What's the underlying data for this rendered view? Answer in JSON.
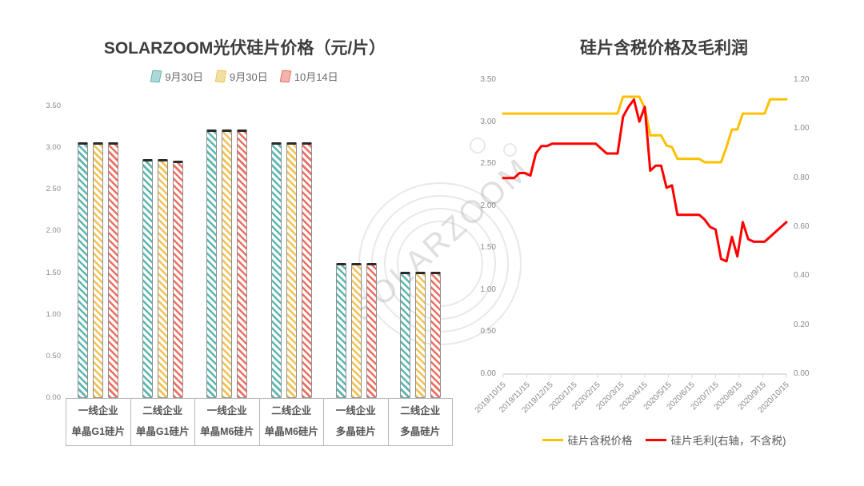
{
  "watermark": {
    "text": "SOLARZOOM"
  },
  "chart_data": [
    {
      "type": "bar",
      "title": "SOLARZOOM光伏硅片价格（元/片）",
      "legend_position": "top",
      "grid": false,
      "ylim": [
        0,
        3.5
      ],
      "y_ticks": [
        "3.50",
        "3.00",
        "2.50",
        "2.00",
        "1.50",
        "1.00",
        "0.50",
        "0.00"
      ],
      "categories": [
        {
          "company": "一线企业",
          "product": "单晶G1硅片"
        },
        {
          "company": "二线企业",
          "product": "单晶G1硅片"
        },
        {
          "company": "一线企业",
          "product": "单晶M6硅片"
        },
        {
          "company": "二线企业",
          "product": "单晶M6硅片"
        },
        {
          "company": "一线企业",
          "product": "多晶硅片"
        },
        {
          "company": "二线企业",
          "product": "多晶硅片"
        }
      ],
      "series": [
        {
          "name": "9月30日",
          "color": "#5cb6b0",
          "swatch_fill": "#aed9d6",
          "values": [
            3.07,
            2.87,
            3.22,
            3.07,
            1.62,
            1.52
          ]
        },
        {
          "name": "9月30日",
          "color": "#f0c254",
          "swatch_fill": "#f4dfa3",
          "values": [
            3.07,
            2.87,
            3.22,
            3.07,
            1.62,
            1.52
          ]
        },
        {
          "name": "10月14日",
          "color": "#ec6f62",
          "swatch_fill": "#f3b3ab",
          "values": [
            3.07,
            2.85,
            3.22,
            3.07,
            1.62,
            1.52
          ]
        }
      ]
    },
    {
      "type": "line",
      "title": "硅片含税价格及毛利润",
      "legend_position": "bottom",
      "grid": false,
      "x_tick_labels": [
        "2019/10/15",
        "2019/11/15",
        "2019/12/15",
        "2020/1/15",
        "2020/2/15",
        "2020/3/15",
        "2020/4/15",
        "2020/5/15",
        "2020/6/15",
        "2020/7/15",
        "2020/8/15",
        "2020/9/15",
        "2020/10/15"
      ],
      "left_axis": {
        "lim": [
          0,
          3.5
        ],
        "ticks": [
          "3.50",
          "3.00",
          "2.50",
          "2.00",
          "1.50",
          "1.00",
          "0.50",
          "0.00"
        ]
      },
      "right_axis": {
        "lim": [
          0,
          1.2
        ],
        "ticks": [
          "1.20",
          "1.00",
          "0.80",
          "0.60",
          "0.40",
          "0.20",
          "0.00"
        ]
      },
      "series": [
        {
          "name": "硅片含税价格",
          "color": "#ffc000",
          "axis": "left",
          "values": [
            3.1,
            3.1,
            3.1,
            3.1,
            3.1,
            3.1,
            3.1,
            3.1,
            3.1,
            3.1,
            3.1,
            3.1,
            3.1,
            3.1,
            3.1,
            3.1,
            3.1,
            3.1,
            3.1,
            3.1,
            3.1,
            3.1,
            3.3,
            3.3,
            3.3,
            3.3,
            3.16,
            2.84,
            2.84,
            2.84,
            2.72,
            2.7,
            2.56,
            2.56,
            2.56,
            2.56,
            2.56,
            2.52,
            2.52,
            2.52,
            2.52,
            2.7,
            2.91,
            2.91,
            3.1,
            3.1,
            3.1,
            3.1,
            3.1,
            3.27,
            3.27,
            3.27,
            3.27
          ]
        },
        {
          "name": "硅片毛利(右轴，不含税)",
          "color": "#ff0000",
          "axis": "right",
          "values": [
            0.8,
            0.8,
            0.8,
            0.82,
            0.82,
            0.81,
            0.9,
            0.93,
            0.93,
            0.94,
            0.94,
            0.94,
            0.94,
            0.94,
            0.94,
            0.94,
            0.94,
            0.94,
            0.92,
            0.9,
            0.9,
            0.9,
            1.05,
            1.09,
            1.12,
            1.03,
            1.09,
            0.83,
            0.85,
            0.85,
            0.76,
            0.77,
            0.65,
            0.65,
            0.65,
            0.65,
            0.65,
            0.63,
            0.6,
            0.59,
            0.47,
            0.46,
            0.56,
            0.48,
            0.62,
            0.55,
            0.54,
            0.54,
            0.54,
            0.56,
            0.58,
            0.6,
            0.62
          ]
        }
      ]
    }
  ]
}
